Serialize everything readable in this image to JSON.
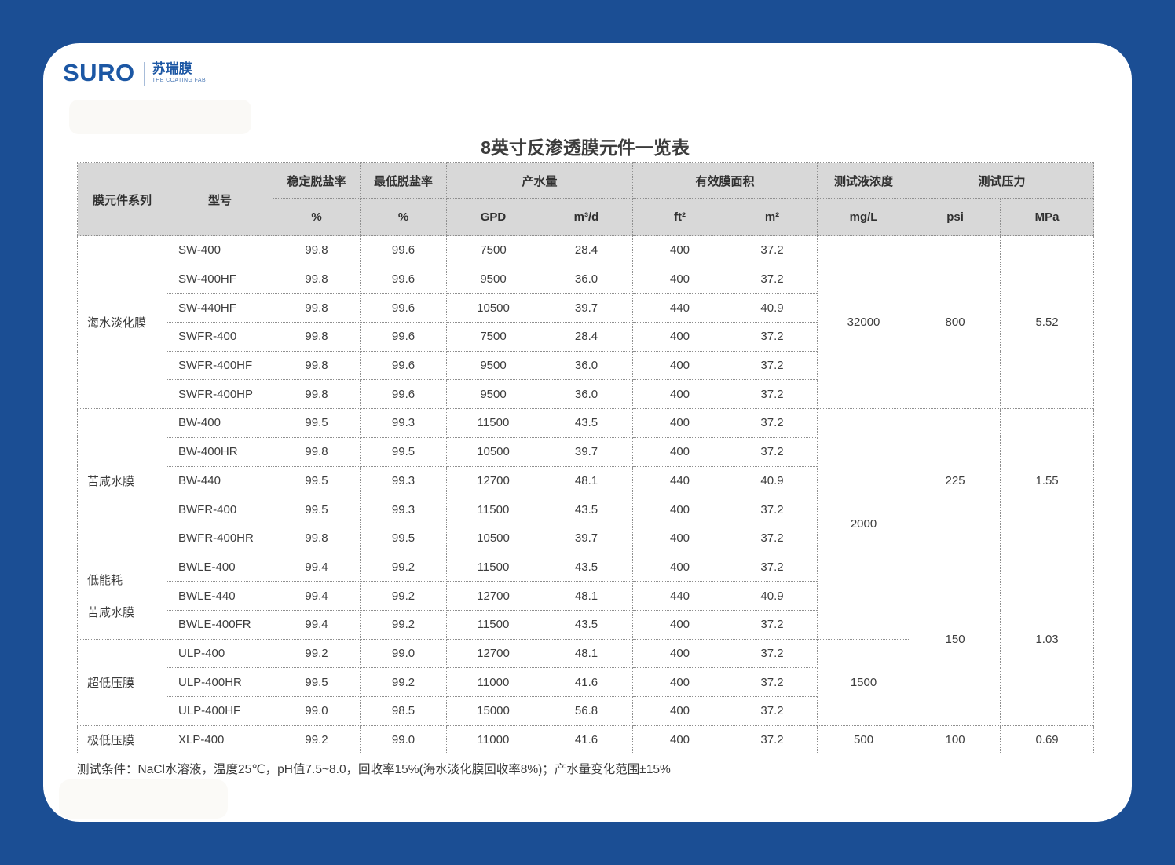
{
  "colors": {
    "background": "#1b4e94",
    "brand_blue": "#1c57a4",
    "header_gray": "#d8d8d8"
  },
  "logo": {
    "brand": "SURO",
    "cn_name": "苏瑞膜",
    "tagline": "THE COATING FAB"
  },
  "title": "8英寸反渗透膜元件一览表",
  "table": {
    "columns": {
      "series": "膜元件系列",
      "model": "型号",
      "stable_rejection": "稳定脱盐率",
      "min_rejection": "最低脱盐率",
      "flow": "产水量",
      "area": "有效膜面积",
      "concentration": "测试液浓度",
      "pressure": "测试压力"
    },
    "units": {
      "stable_pct": "%",
      "min_pct": "%",
      "gpd": "GPD",
      "m3d": "m³/d",
      "ft2": "ft²",
      "m2": "m²",
      "mgl": "mg/L",
      "psi": "psi",
      "mpa": "MPa"
    },
    "rows": [
      {
        "model": "SW-400",
        "stable": "99.8",
        "min": "99.6",
        "gpd": "7500",
        "m3d": "28.4",
        "ft2": "400",
        "m2": "37.2"
      },
      {
        "model": "SW-400HF",
        "stable": "99.8",
        "min": "99.6",
        "gpd": "9500",
        "m3d": "36.0",
        "ft2": "400",
        "m2": "37.2"
      },
      {
        "model": "SW-440HF",
        "stable": "99.8",
        "min": "99.6",
        "gpd": "10500",
        "m3d": "39.7",
        "ft2": "440",
        "m2": "40.9"
      },
      {
        "model": "SWFR-400",
        "stable": "99.8",
        "min": "99.6",
        "gpd": "7500",
        "m3d": "28.4",
        "ft2": "400",
        "m2": "37.2"
      },
      {
        "model": "SWFR-400HF",
        "stable": "99.8",
        "min": "99.6",
        "gpd": "9500",
        "m3d": "36.0",
        "ft2": "400",
        "m2": "37.2"
      },
      {
        "model": "SWFR-400HP",
        "stable": "99.8",
        "min": "99.6",
        "gpd": "9500",
        "m3d": "36.0",
        "ft2": "400",
        "m2": "37.2"
      },
      {
        "model": "BW-400",
        "stable": "99.5",
        "min": "99.3",
        "gpd": "11500",
        "m3d": "43.5",
        "ft2": "400",
        "m2": "37.2"
      },
      {
        "model": "BW-400HR",
        "stable": "99.8",
        "min": "99.5",
        "gpd": "10500",
        "m3d": "39.7",
        "ft2": "400",
        "m2": "37.2"
      },
      {
        "model": "BW-440",
        "stable": "99.5",
        "min": "99.3",
        "gpd": "12700",
        "m3d": "48.1",
        "ft2": "440",
        "m2": "40.9"
      },
      {
        "model": "BWFR-400",
        "stable": "99.5",
        "min": "99.3",
        "gpd": "11500",
        "m3d": "43.5",
        "ft2": "400",
        "m2": "37.2"
      },
      {
        "model": "BWFR-400HR",
        "stable": "99.8",
        "min": "99.5",
        "gpd": "10500",
        "m3d": "39.7",
        "ft2": "400",
        "m2": "37.2"
      },
      {
        "model": "BWLE-400",
        "stable": "99.4",
        "min": "99.2",
        "gpd": "11500",
        "m3d": "43.5",
        "ft2": "400",
        "m2": "37.2"
      },
      {
        "model": "BWLE-440",
        "stable": "99.4",
        "min": "99.2",
        "gpd": "12700",
        "m3d": "48.1",
        "ft2": "440",
        "m2": "40.9"
      },
      {
        "model": "BWLE-400FR",
        "stable": "99.4",
        "min": "99.2",
        "gpd": "11500",
        "m3d": "43.5",
        "ft2": "400",
        "m2": "37.2"
      },
      {
        "model": "ULP-400",
        "stable": "99.2",
        "min": "99.0",
        "gpd": "12700",
        "m3d": "48.1",
        "ft2": "400",
        "m2": "37.2"
      },
      {
        "model": "ULP-400HR",
        "stable": "99.5",
        "min": "99.2",
        "gpd": "11000",
        "m3d": "41.6",
        "ft2": "400",
        "m2": "37.2"
      },
      {
        "model": "ULP-400HF",
        "stable": "99.0",
        "min": "98.5",
        "gpd": "15000",
        "m3d": "56.8",
        "ft2": "400",
        "m2": "37.2"
      },
      {
        "model": "XLP-400",
        "stable": "99.2",
        "min": "99.0",
        "gpd": "11000",
        "m3d": "41.6",
        "ft2": "400",
        "m2": "37.2"
      }
    ],
    "spans": {
      "series": [
        {
          "row": 0,
          "rowspan": 6,
          "lines": [
            "海水淡化膜"
          ]
        },
        {
          "row": 6,
          "rowspan": 5,
          "lines": [
            "苦咸水膜"
          ]
        },
        {
          "row": 11,
          "rowspan": 3,
          "lines": [
            "低能耗",
            "苦咸水膜"
          ]
        },
        {
          "row": 14,
          "rowspan": 3,
          "lines": [
            "超低压膜"
          ]
        },
        {
          "row": 17,
          "rowspan": 1,
          "lines": [
            "极低压膜"
          ]
        }
      ],
      "concentration": [
        {
          "row": 0,
          "rowspan": 6,
          "value": "32000"
        },
        {
          "row": 6,
          "rowspan": 8,
          "value": "2000"
        },
        {
          "row": 14,
          "rowspan": 3,
          "value": "1500"
        },
        {
          "row": 17,
          "rowspan": 1,
          "value": "500"
        }
      ],
      "psi": [
        {
          "row": 0,
          "rowspan": 6,
          "value": "800"
        },
        {
          "row": 6,
          "rowspan": 5,
          "value": "225"
        },
        {
          "row": 11,
          "rowspan": 6,
          "value": "150"
        },
        {
          "row": 17,
          "rowspan": 1,
          "value": "100"
        }
      ],
      "mpa": [
        {
          "row": 0,
          "rowspan": 6,
          "value": "5.52"
        },
        {
          "row": 6,
          "rowspan": 5,
          "value": "1.55"
        },
        {
          "row": 11,
          "rowspan": 6,
          "value": "1.03"
        },
        {
          "row": 17,
          "rowspan": 1,
          "value": "0.69"
        }
      ]
    }
  },
  "footnote": "测试条件：NaCl水溶液，温度25℃，pH值7.5~8.0，回收率15%(海水淡化膜回收率8%)；产水量变化范围±15%"
}
